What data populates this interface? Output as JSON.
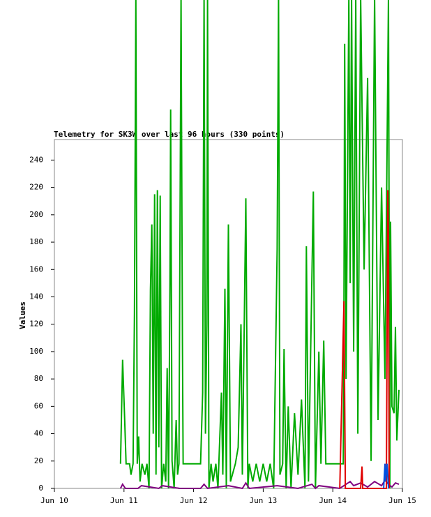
{
  "chart_data": {
    "type": "line",
    "title": "Telemetry for SK3W over last 96 hours (330 points)",
    "y_label": "Values",
    "xlim": [
      0,
      5
    ],
    "xticks": [
      {
        "value": 0,
        "label": "Jun 10"
      },
      {
        "value": 1,
        "label": "Jun 11"
      },
      {
        "value": 2,
        "label": "Jun 12"
      },
      {
        "value": 3,
        "label": "Jun 13"
      },
      {
        "value": 4,
        "label": "Jun 14"
      },
      {
        "value": 5,
        "label": "Jun 15"
      }
    ],
    "ylim": [
      0,
      255
    ],
    "yticks": [
      0,
      20,
      40,
      60,
      80,
      100,
      120,
      140,
      160,
      180,
      200,
      220,
      240
    ],
    "series": [
      {
        "name": "green",
        "color": "#00aa00",
        "x": [
          0.95,
          0.98,
          1.01,
          1.03,
          1.08,
          1.1,
          1.13,
          1.15,
          1.17,
          1.19,
          1.21,
          1.23,
          1.26,
          1.3,
          1.33,
          1.36,
          1.38,
          1.4,
          1.42,
          1.44,
          1.46,
          1.48,
          1.5,
          1.52,
          1.54,
          1.57,
          1.6,
          1.62,
          1.64,
          1.66,
          1.67,
          1.69,
          1.72,
          1.75,
          1.77,
          1.79,
          1.82,
          1.84,
          1.85,
          2.1,
          2.13,
          2.15,
          2.17,
          2.19,
          2.2,
          2.22,
          2.25,
          2.28,
          2.32,
          2.35,
          2.4,
          2.42,
          2.45,
          2.47,
          2.5,
          2.53,
          2.6,
          2.64,
          2.68,
          2.7,
          2.75,
          2.78,
          2.8,
          2.85,
          2.9,
          2.95,
          3.0,
          3.05,
          3.1,
          3.15,
          3.2,
          3.22,
          3.24,
          3.28,
          3.3,
          3.33,
          3.36,
          3.4,
          3.45,
          3.5,
          3.55,
          3.6,
          3.62,
          3.65,
          3.72,
          3.75,
          3.8,
          3.83,
          3.87,
          3.9,
          4.15,
          4.16,
          4.17,
          4.19,
          4.23,
          4.25,
          4.27,
          4.3,
          4.33,
          4.36,
          4.4,
          4.45,
          4.5,
          4.55,
          4.6,
          4.65,
          4.7,
          4.75,
          4.8,
          4.82,
          4.83,
          4.85,
          4.88,
          4.9,
          4.92,
          4.95
        ],
        "values": [
          18,
          94,
          50,
          18,
          18,
          10,
          18,
          128,
          360,
          18,
          38,
          5,
          18,
          10,
          18,
          0,
          145,
          193,
          40,
          215,
          10,
          218,
          30,
          214,
          0,
          18,
          5,
          88,
          0,
          150,
          277,
          20,
          0,
          50,
          10,
          18,
          360,
          106,
          18,
          18,
          70,
          360,
          40,
          120,
          360,
          0,
          18,
          5,
          18,
          0,
          70,
          10,
          146,
          0,
          193,
          5,
          18,
          30,
          120,
          10,
          212,
          0,
          18,
          5,
          18,
          5,
          18,
          5,
          18,
          0,
          175,
          360,
          10,
          18,
          102,
          0,
          60,
          0,
          55,
          10,
          65,
          0,
          177,
          5,
          217,
          0,
          100,
          18,
          108,
          18,
          18,
          137,
          325,
          80,
          360,
          150,
          360,
          100,
          360,
          40,
          360,
          160,
          300,
          20,
          360,
          50,
          220,
          80,
          360,
          0,
          195,
          60,
          55,
          118,
          35,
          72
        ]
      },
      {
        "name": "purple",
        "color": "#800080",
        "x": [
          0.95,
          0.98,
          1.02,
          1.2,
          1.25,
          1.5,
          1.55,
          1.8,
          2.1,
          2.15,
          2.2,
          2.5,
          2.7,
          2.75,
          2.8,
          3.2,
          3.5,
          3.7,
          3.75,
          3.8,
          4.1,
          4.25,
          4.3,
          4.4,
          4.5,
          4.6,
          4.7,
          4.75,
          4.8,
          4.85,
          4.9,
          4.95
        ],
        "values": [
          0,
          3,
          0,
          0,
          2,
          0,
          2,
          0,
          0,
          3,
          0,
          2,
          0,
          4,
          0,
          2,
          0,
          3,
          0,
          2,
          0,
          5,
          2,
          4,
          1,
          5,
          2,
          6,
          3,
          1,
          4,
          3
        ]
      },
      {
        "name": "red",
        "color": "#e00000",
        "x": [
          4.1,
          4.16,
          4.18,
          4.4,
          4.42,
          4.43,
          4.77,
          4.79,
          4.8,
          4.81
        ],
        "values": [
          0,
          137,
          0,
          0,
          16,
          0,
          0,
          218,
          185,
          0
        ]
      },
      {
        "name": "blue",
        "color": "#0050e0",
        "x": [
          4.73,
          4.75,
          4.76,
          4.78,
          4.8
        ],
        "values": [
          0,
          18,
          5,
          18,
          0
        ]
      }
    ]
  }
}
